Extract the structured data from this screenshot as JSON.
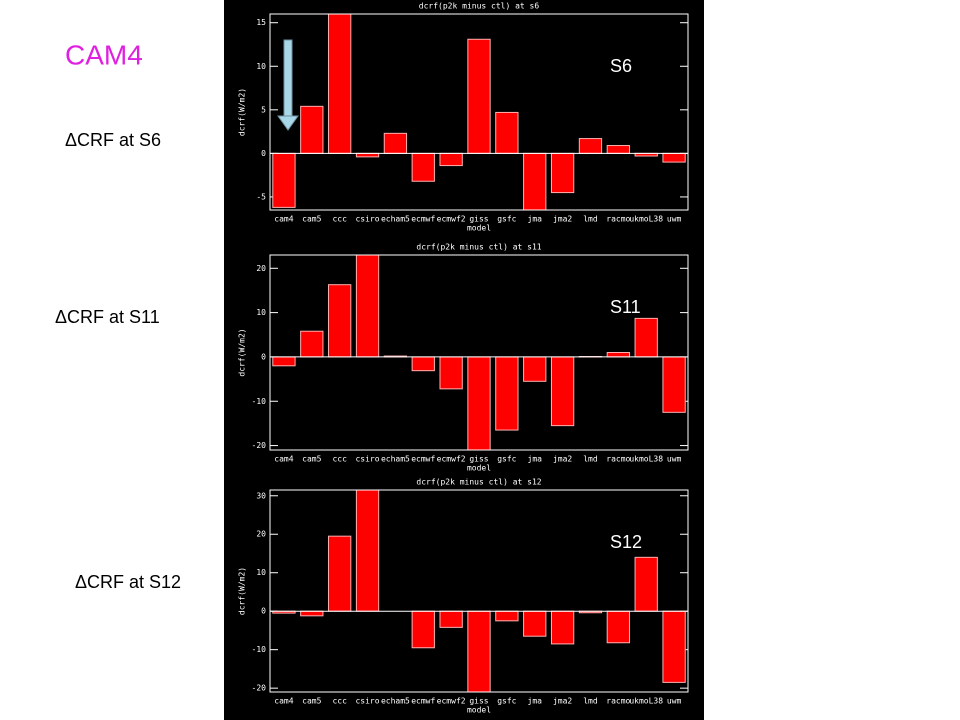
{
  "slide": {
    "title": "CAM4",
    "labels": [
      "ΔCRF at S6",
      "ΔCRF at S11",
      "ΔCRF at S12"
    ]
  },
  "chart_data": [
    {
      "type": "bar",
      "title": "dcrf(p2k minus ctl) at s6",
      "ylabel": "dcrf(W/m2)",
      "xlabel": "model",
      "annotation": "S6",
      "categories": [
        "cam4",
        "cam5",
        "ccc",
        "csiro",
        "echam5",
        "ecmwf",
        "ecmwf2",
        "giss",
        "gsfc",
        "jma",
        "jma2",
        "lmd",
        "racmo",
        "ukmoL38",
        "uwm"
      ],
      "values": [
        -6.2,
        5.4,
        16,
        -0.4,
        2.3,
        -3.2,
        -1.4,
        13.1,
        4.7,
        -6.5,
        -4.5,
        1.7,
        0.9,
        -0.3,
        -1.0
      ],
      "color": "#ff0000",
      "ylim": [
        -6.5,
        16
      ],
      "yticks": [
        -5,
        0,
        5,
        10,
        15
      ]
    },
    {
      "type": "bar",
      "title": "dcrf(p2k minus ctl) at s11",
      "ylabel": "dcrf(W/m2)",
      "xlabel": "model",
      "annotation": "S11",
      "categories": [
        "cam4",
        "cam5",
        "ccc",
        "csiro",
        "echam5",
        "ecmwf",
        "ecmwf2",
        "giss",
        "gsfc",
        "jma",
        "jma2",
        "lmd",
        "racmo",
        "ukmoL38",
        "uwm"
      ],
      "values": [
        -2,
        5.8,
        16.3,
        23,
        0.2,
        -3.1,
        -7.2,
        -21,
        -16.5,
        -5.5,
        -15.5,
        0.1,
        1,
        8.7,
        -12.5
      ],
      "color": "#ff0000",
      "ylim": [
        -21,
        23
      ],
      "yticks": [
        -20,
        -10,
        0,
        10,
        20
      ]
    },
    {
      "type": "bar",
      "title": "dcrf(p2k minus ctl) at s12",
      "ylabel": "dcrf(W/m2)",
      "xlabel": "model",
      "annotation": "S12",
      "categories": [
        "cam4",
        "cam5",
        "ccc",
        "csiro",
        "echam5",
        "ecmwf",
        "ecmwf2",
        "giss",
        "gsfc",
        "jma",
        "jma2",
        "lmd",
        "racmo",
        "ukmoL38",
        "uwm"
      ],
      "values": [
        -0.5,
        -1.2,
        19.5,
        31.5,
        0,
        -9.5,
        -4.2,
        -21,
        -2.5,
        -6.5,
        -8.5,
        -0.4,
        -8.2,
        14,
        -18.5
      ],
      "color": "#ff0000",
      "ylim": [
        -21,
        31.5
      ],
      "yticks": [
        -20,
        -10,
        0,
        10,
        20,
        30
      ]
    }
  ]
}
